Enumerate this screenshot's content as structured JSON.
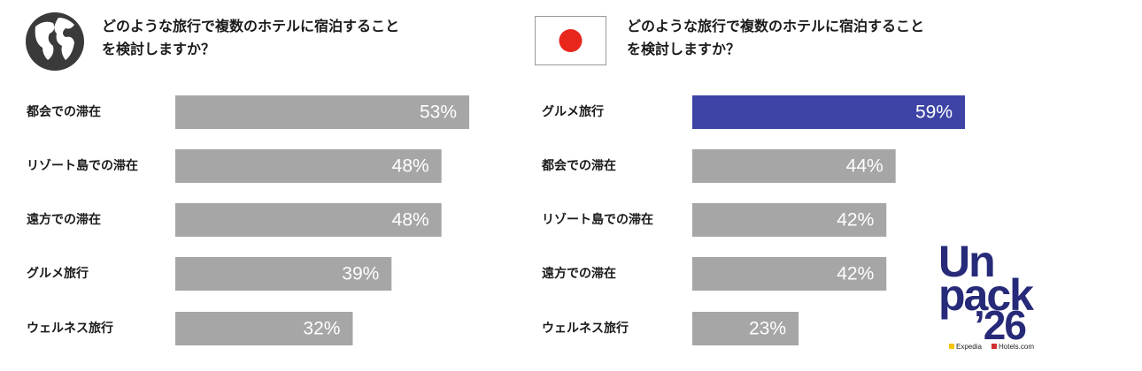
{
  "chart_data": [
    {
      "type": "bar",
      "orientation": "horizontal",
      "title": "どのような旅行で複数のホテルに宿泊すること\nを検討しますか？",
      "categories": [
        "都会での滞在",
        "リゾート島での滞在",
        "遠方での滞在",
        "グルメ旅行",
        "ウェルネス旅行"
      ],
      "values": [
        53,
        48,
        48,
        39,
        32
      ],
      "value_labels": [
        "53%",
        "48%",
        "48%",
        "39%",
        "32%"
      ],
      "colors": [
        "#a6a6a6",
        "#a6a6a6",
        "#a6a6a6",
        "#a6a6a6",
        "#a6a6a6"
      ]
    },
    {
      "type": "bar",
      "orientation": "horizontal",
      "title": "どのような旅行で複数のホテルに宿泊すること\nを検討しますか？",
      "categories": [
        "グルメ旅行",
        "都会での滞在",
        "リゾート島での滞在",
        "遠方での滞在",
        "ウェルネス旅行"
      ],
      "values": [
        59,
        44,
        42,
        42,
        23
      ],
      "value_labels": [
        "59%",
        "44%",
        "42%",
        "42%",
        "23%"
      ],
      "colors": [
        "#3d44a6",
        "#a6a6a6",
        "#a6a6a6",
        "#a6a6a6",
        "#a6a6a6"
      ]
    }
  ],
  "logo": {
    "lines": [
      "Un",
      "pack",
      "’26"
    ],
    "brands": [
      "Expedia",
      "Hotels.com"
    ]
  }
}
